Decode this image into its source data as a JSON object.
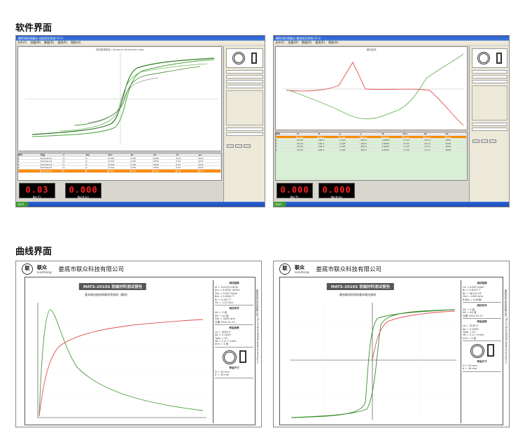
{
  "sections": {
    "software_title": "软件界面",
    "curve_title": "曲线界面"
  },
  "screen1": {
    "window_title": "磁性材料测量仪-动态测试系统 V1.0",
    "menu": [
      "文件(F)",
      "测量(M)",
      "数据(D)",
      "报表(R)",
      "帮助(H)"
    ],
    "plot_title": "动态磁滞回线 / Dynamic Hysteresis Loop",
    "table_headers": [
      "序号",
      "样品",
      "f",
      "Bm",
      "Hm",
      "Br",
      "Hc",
      "Ps",
      "μa"
    ],
    "table_rows": [
      [
        "1",
        "Sample-01",
        "0",
        "0",
        "0.523",
        "3.69",
        "2590",
        "1.52",
        "20.6"
      ],
      [
        "2",
        "Sample-02",
        "0",
        "0",
        "0.523",
        "3.68",
        "2590",
        "1.52",
        "20.6"
      ],
      [
        "3",
        "Sample-03",
        "0",
        "0",
        "0.523",
        "3.68",
        "2590",
        "1.52",
        "20.6"
      ],
      [
        "4",
        "Sample-04",
        "0",
        "0",
        "0.523",
        "3.68",
        "2590",
        "1.52",
        "20.6"
      ],
      [
        "5",
        "Sample-05",
        "0",
        "0",
        "0.523",
        "3.68",
        "2590",
        "1.52",
        "20.6"
      ]
    ],
    "led1": "0.03",
    "led1_label": "Bm(T)",
    "led2": "0.000",
    "led2_label": "Hm(A/m)"
  },
  "screen2": {
    "window_title": "磁性材料测量仪-静态测试系统 V1.0",
    "menu": [
      "文件(F)",
      "测量(M)",
      "数据(D)",
      "报表(R)",
      "帮助(H)"
    ],
    "plot_title": "磁化曲线",
    "table_headers": [
      "序号",
      "H",
      "B",
      "μ",
      "J",
      "M",
      "Pcv",
      "Br",
      "Hc"
    ],
    "table_rows": [
      [
        "1",
        "20.63",
        "184.2",
        "1.225",
        "309.5",
        "0.5805",
        "77.20",
        "211.2",
        "2000"
      ],
      [
        "2",
        "20.63",
        "184.2",
        "1.225",
        "309.5",
        "0.5805",
        "77.20",
        "211.2",
        "2000"
      ],
      [
        "3",
        "20.63",
        "184.2",
        "1.225",
        "309.5",
        "0.5805",
        "77.20",
        "211.2",
        "2000"
      ],
      [
        "4",
        "20.63",
        "184.2",
        "1.225",
        "309.5",
        "0.5805",
        "77.20",
        "211.2",
        "2000"
      ],
      [
        "5",
        "20.63",
        "184.2",
        "1.225",
        "309.5",
        "0.5805",
        "77.20",
        "211.2",
        "2000"
      ]
    ],
    "led1": "0.000",
    "led1_label": "Bm(T)",
    "led2": "0.000",
    "led2_label": "Hm(A/m)"
  },
  "report1": {
    "brand": "联众",
    "brand_en": "Lianzhong",
    "company": "娄底市联众科技有限公司",
    "report_title": "MATS-2010S 软磁材料测试报告",
    "chart_title": "基本磁化曲线和磁导率曲线（静态）",
    "info_blocks": [
      {
        "title": "测试结果",
        "lines": [
          "μi = 0.0125 mH/m",
          "μm = 0.0251 mH/m",
          "Hm = 0.527 kA/m",
          "Bm = 0.0282 T",
          "Br = 0.527 T",
          "Hc = 1.22 A/m"
        ]
      },
      {
        "title": "测试条件",
        "lines": [
          "N1 = 5 匝",
          "N2 = 50 匝",
          "Hm = 3000 A/m",
          "日期 2010-01-27"
        ]
      },
      {
        "title": "样品参数",
        "lines": [
          "Le = 3235.3",
          "Ae = 2.0209",
          "Type = 01",
          "Ve = 111.7 mm3",
          "mm = 4 匝"
        ]
      },
      {
        "title": "样品尺寸",
        "lines": [
          "D = 50 mm",
          "d = 34 mm"
        ]
      }
    ],
    "side_text": "娄底市联众科技有限公司 TEL:0738-8266388 www.lianzhong.cn"
  },
  "report2": {
    "brand": "联众",
    "brand_en": "Lianzhong",
    "company": "娄底市联众科技有限公司",
    "report_title": "MATS-2010S 软磁材料测试报告",
    "chart_title": "静态磁滞回线和基本磁化曲线",
    "info_blocks": [
      {
        "title": "测试结果",
        "lines": [
          "Hc = 0.897 kA/m",
          "Br = 0.6215 T",
          "Bs = 46.02 mT",
          "Hm = 1000 A/m",
          "Br/Bs = 0.8688"
        ]
      },
      {
        "title": "测试条件",
        "lines": [
          "N1 = 5 匝",
          "N2 = 50 匝",
          "日期 2010-01-27"
        ]
      },
      {
        "title": "样品参数",
        "lines": [
          "Le = 3235.3",
          "Ae = 2.0209",
          "Type = 01",
          "Ve = 111.7 mm3",
          "mm = 4 匝"
        ]
      },
      {
        "title": "样品尺寸",
        "lines": [
          "D = 50 mm",
          "d = 34 mm"
        ]
      }
    ],
    "side_text": "娄底市联众科技有限公司 TEL:0738-8266388 www.lianzhong.cn"
  },
  "colors": {
    "green": "#3c8c2c",
    "red": "#e05050",
    "orange": "#ff8a00",
    "led_red": "#ff2a2a",
    "table_green": "#d9efd5"
  }
}
